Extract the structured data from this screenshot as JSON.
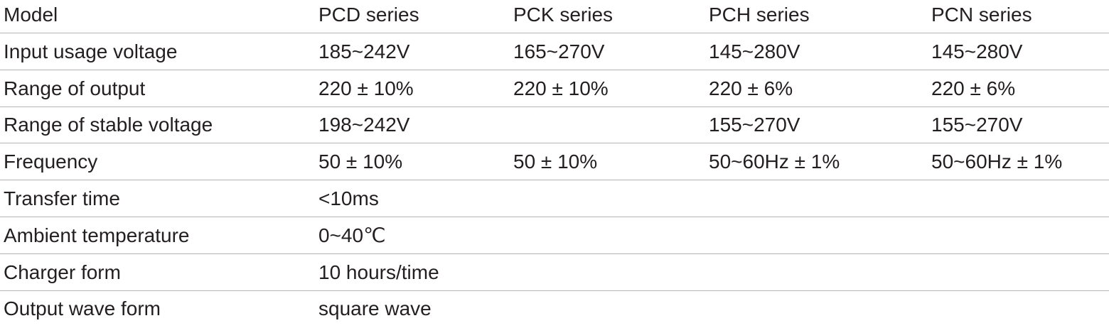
{
  "table": {
    "header": [
      "Model",
      "PCD series",
      "PCK series",
      "PCH series",
      "PCN series"
    ],
    "rows": [
      [
        "Input usage voltage",
        "185~242V",
        "165~270V",
        "145~280V",
        "145~280V"
      ],
      [
        "Range of output",
        "220 ± 10%",
        "220 ± 10%",
        "220 ± 6%",
        "220 ± 6%"
      ],
      [
        "Range of stable voltage",
        "198~242V",
        null,
        "155~270V",
        "155~270V"
      ],
      [
        "Frequency",
        "50 ± 10%",
        "50 ± 10%",
        "50~60Hz ± 1%",
        "50~60Hz ± 1%"
      ],
      [
        "Transfer time",
        "<10ms"
      ],
      [
        "Ambient temperature",
        "0~40℃"
      ],
      [
        "Charger form",
        "10 hours/time"
      ],
      [
        "Output wave form",
        "square wave"
      ]
    ]
  }
}
